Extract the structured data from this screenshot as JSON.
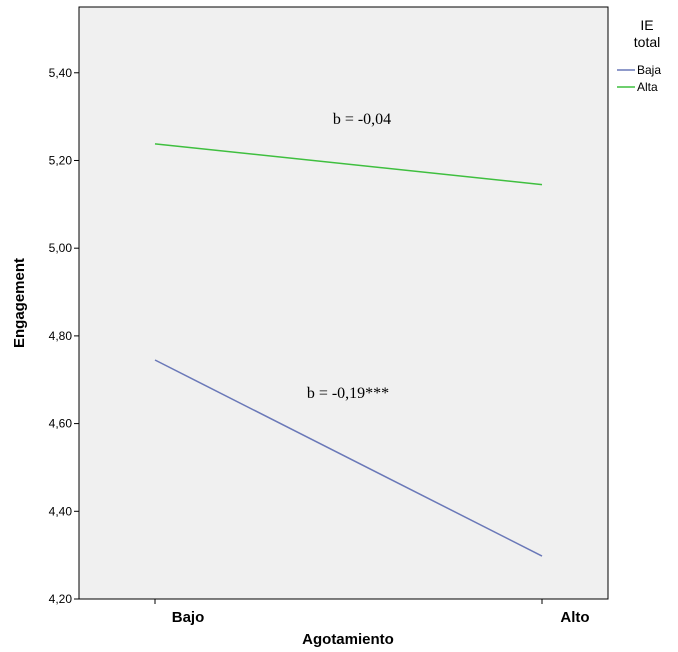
{
  "chart_data": {
    "type": "line",
    "xlabel": "Agotamiento",
    "ylabel": "Engagement",
    "categories": [
      "Bajo",
      "Alto"
    ],
    "ylim": [
      4.2,
      5.55
    ],
    "yticks": [
      "4,20",
      "4,40",
      "4,60",
      "4,80",
      "5,00",
      "5,20",
      "5,40"
    ],
    "ytick_values": [
      4.2,
      4.4,
      4.6,
      4.8,
      5.0,
      5.2,
      5.4
    ],
    "series": [
      {
        "name": "Baja",
        "values": [
          4.745,
          4.298
        ],
        "color": "#6a78b8"
      },
      {
        "name": "Alta",
        "values": [
          5.238,
          5.145
        ],
        "color": "#3fbf3f"
      }
    ],
    "legend": {
      "title_line1": "IE",
      "title_line2": "total",
      "position": "right"
    },
    "annotations": [
      {
        "text": "b = -0,04",
        "series": "Alta"
      },
      {
        "text": "b = -0,19***",
        "series": "Baja"
      }
    ],
    "grid": false,
    "plot_background": "#f0f0f0"
  }
}
